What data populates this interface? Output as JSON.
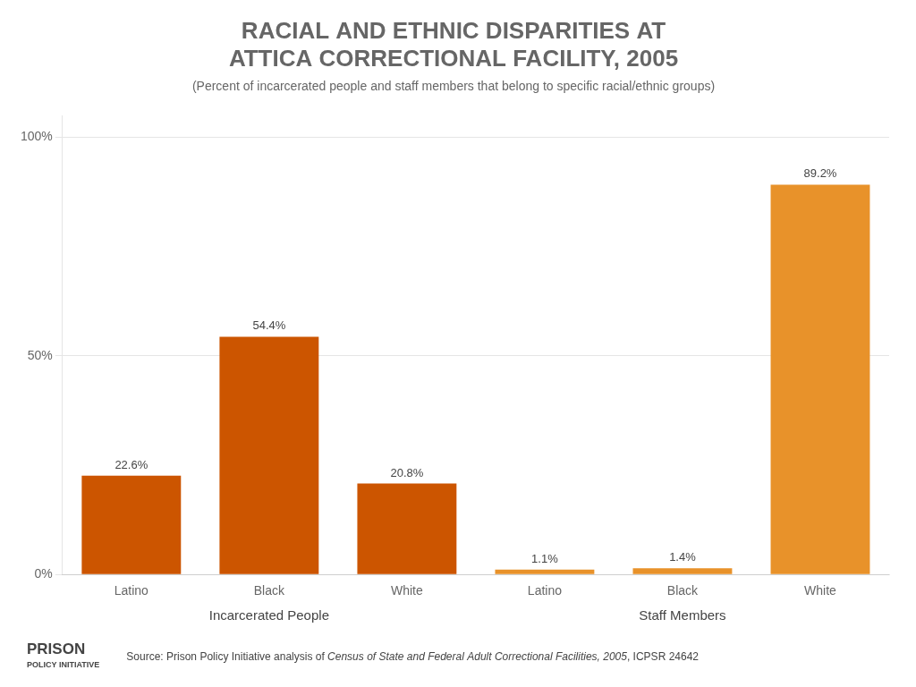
{
  "chart_data": {
    "type": "bar",
    "title": [
      "RACIAL AND ETHNIC DISPARITIES AT",
      "ATTICA CORRECTIONAL FACILITY, 2005"
    ],
    "subtitle": "(Percent of incarcerated people and staff members that belong to specific racial/ethnic groups)",
    "categories": [
      "Latino",
      "Black",
      "White",
      "Latino",
      "Black",
      "White"
    ],
    "values": [
      22.6,
      54.4,
      20.8,
      1.1,
      1.4,
      89.2
    ],
    "value_labels": [
      "22.6%",
      "54.4%",
      "20.8%",
      "1.1%",
      "1.4%",
      "89.2%"
    ],
    "colors": [
      "#CC5500",
      "#CC5500",
      "#CC5500",
      "#E8922A",
      "#E8922A",
      "#E8922A"
    ],
    "group_labels": [
      "Incarcerated People",
      "Staff Members"
    ],
    "ylim": [
      0,
      105
    ],
    "yticks": [
      {
        "value": 0,
        "label": "0%"
      },
      {
        "value": 50,
        "label": "50%"
      },
      {
        "value": 100,
        "label": "100%"
      }
    ],
    "grid": true,
    "data_labels": true,
    "source": [
      {
        "text": "Source: Prison Policy Initiative analysis of ",
        "style": "normal"
      },
      {
        "text": "Census of State and Federal Adult Correctional Facilities, 2005",
        "style": "italic"
      },
      {
        "text": ", ICPSR 24642",
        "style": "normal"
      }
    ],
    "logo": [
      "PRISON",
      "POLICY INITIATIVE"
    ]
  }
}
